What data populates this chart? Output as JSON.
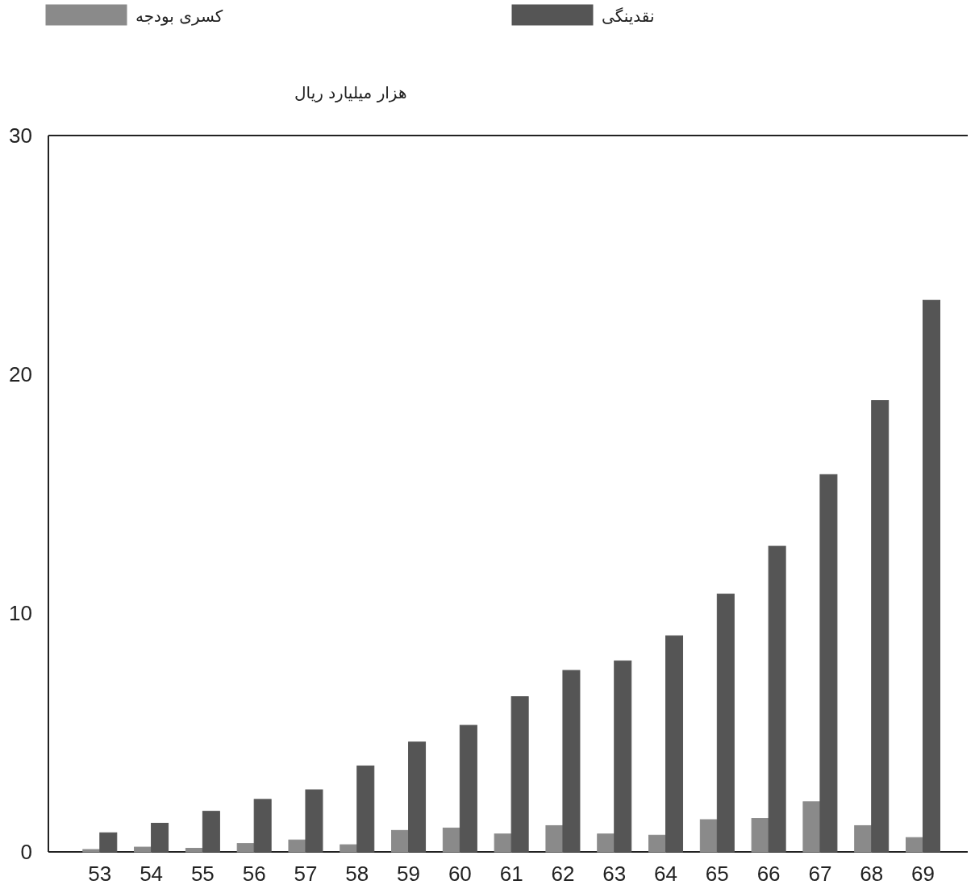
{
  "chart_data": {
    "type": "bar",
    "ylabel": "هزار میلیارد ریال",
    "categories": [
      "53",
      "54",
      "55",
      "56",
      "57",
      "58",
      "59",
      "60",
      "61",
      "62",
      "63",
      "64",
      "65",
      "66",
      "67",
      "68",
      "69"
    ],
    "series": [
      {
        "name": "کسری بودجه",
        "color": "#8a8a8a",
        "values": [
          0.1,
          0.2,
          0.15,
          0.35,
          0.5,
          0.3,
          0.9,
          1.0,
          0.75,
          1.1,
          0.75,
          0.7,
          1.35,
          1.4,
          2.1,
          1.1,
          0.6
        ]
      },
      {
        "name": "نقدینگی",
        "color": "#555555",
        "values": [
          0.8,
          1.2,
          1.7,
          2.2,
          2.6,
          3.6,
          4.6,
          5.3,
          6.5,
          7.6,
          8.0,
          9.05,
          10.8,
          12.8,
          15.8,
          18.9,
          23.1
        ]
      }
    ],
    "ylim": [
      0,
      30
    ],
    "yticks": [
      0,
      10,
      20,
      30
    ],
    "legend": "top",
    "grid": false
  }
}
